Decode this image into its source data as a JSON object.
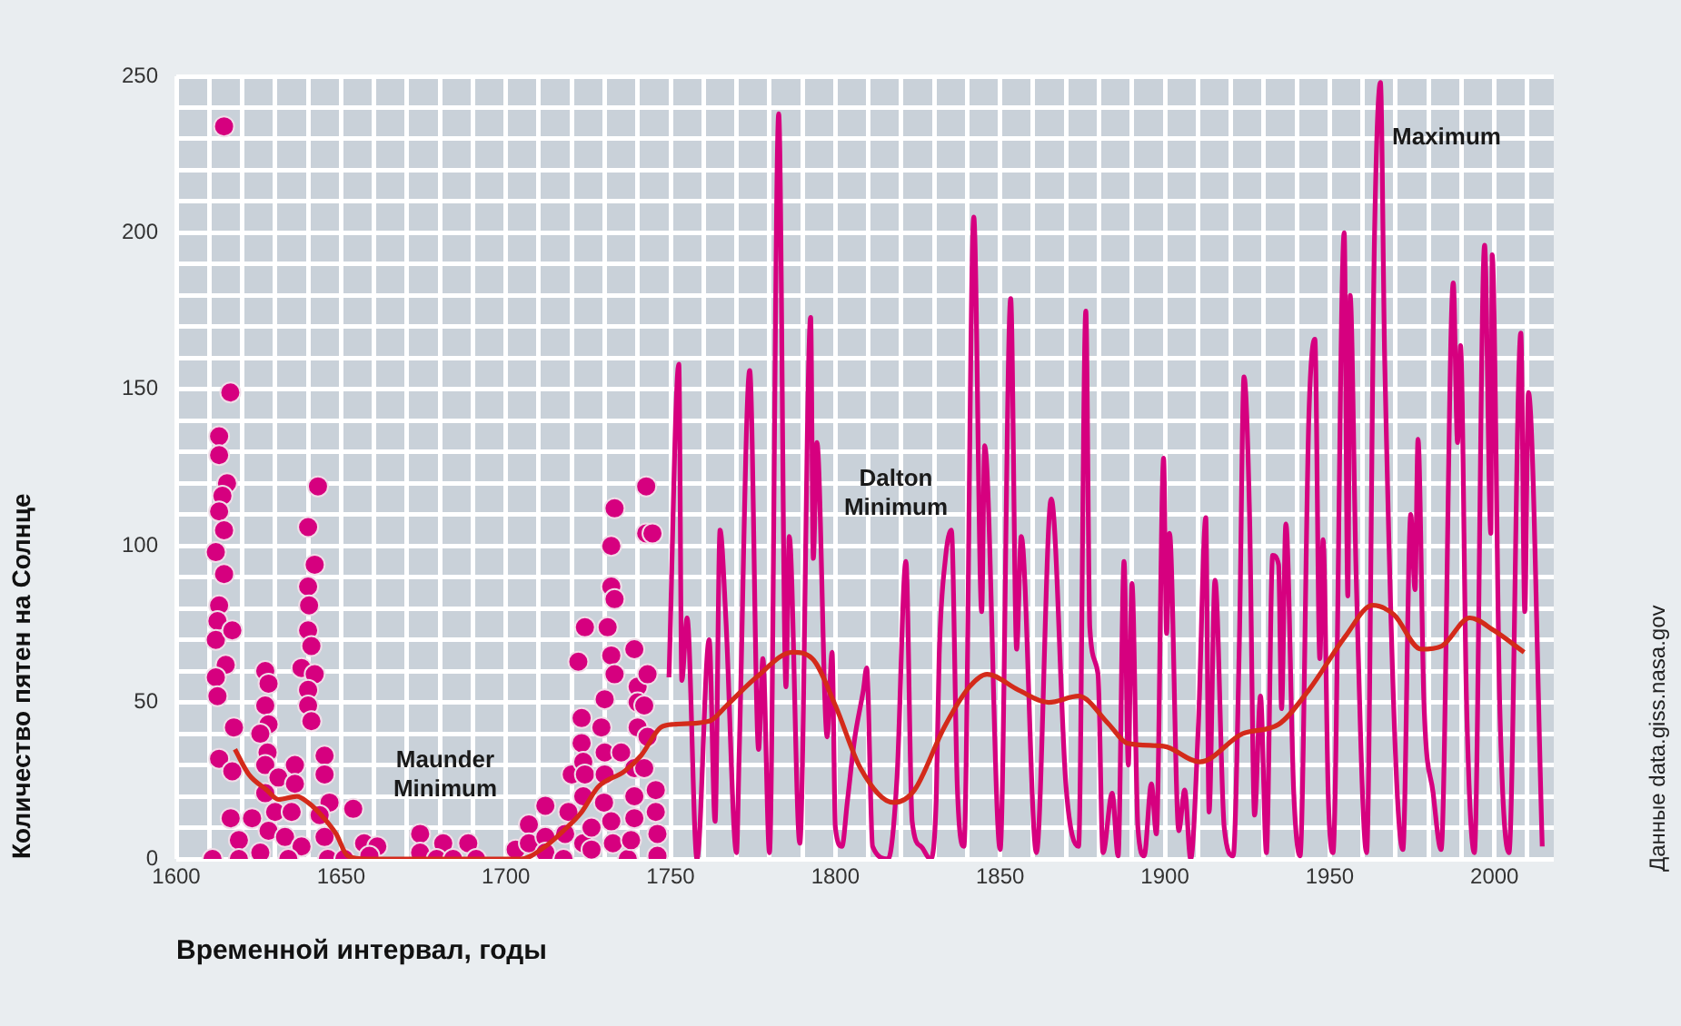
{
  "chart_data": {
    "type": "line",
    "xlabel": "Временной интервал, годы",
    "ylabel": "Количество пятен на Солнце",
    "xlim": [
      1600,
      2018
    ],
    "ylim": [
      0,
      250
    ],
    "xticks": [
      1600,
      {
        "value": 1610,
        "label": null
      },
      {
        "value": 1620,
        "label": null
      },
      {
        "value": 1630,
        "label": null
      },
      {
        "value": 1640,
        "label": null
      },
      1650,
      {
        "value": 1660,
        "label": null
      },
      {
        "value": 1670,
        "label": null
      },
      {
        "value": 1680,
        "label": null
      },
      {
        "value": 1690,
        "label": null
      },
      1700,
      {
        "value": 1710,
        "label": null
      },
      {
        "value": 1720,
        "label": null
      },
      {
        "value": 1730,
        "label": null
      },
      {
        "value": 1740,
        "label": null
      },
      1750,
      {
        "value": 1760,
        "label": null
      },
      {
        "value": 1770,
        "label": null
      },
      {
        "value": 1780,
        "label": null
      },
      {
        "value": 1790,
        "label": null
      },
      1800,
      {
        "value": 1810,
        "label": null
      },
      {
        "value": 1820,
        "label": null
      },
      {
        "value": 1830,
        "label": null
      },
      {
        "value": 1840,
        "label": null
      },
      1850,
      {
        "value": 1860,
        "label": null
      },
      {
        "value": 1870,
        "label": null
      },
      {
        "value": 1880,
        "label": null
      },
      {
        "value": 1890,
        "label": null
      },
      1900,
      {
        "value": 1910,
        "label": null
      },
      {
        "value": 1920,
        "label": null
      },
      {
        "value": 1930,
        "label": null
      },
      {
        "value": 1940,
        "label": null
      },
      1950,
      {
        "value": 1960,
        "label": null
      },
      {
        "value": 1970,
        "label": null
      },
      {
        "value": 1980,
        "label": null
      },
      {
        "value": 1990,
        "label": null
      },
      2000,
      {
        "value": 2010,
        "label": null
      }
    ],
    "yticks": [
      0,
      {
        "value": 10,
        "label": null
      },
      {
        "value": 20,
        "label": null
      },
      {
        "value": 30,
        "label": null
      },
      {
        "value": 40,
        "label": null
      },
      50,
      {
        "value": 60,
        "label": null
      },
      {
        "value": 70,
        "label": null
      },
      {
        "value": 80,
        "label": null
      },
      {
        "value": 90,
        "label": null
      },
      100,
      {
        "value": 110,
        "label": null
      },
      {
        "value": 120,
        "label": null
      },
      {
        "value": 130,
        "label": null
      },
      {
        "value": 140,
        "label": null
      },
      150,
      {
        "value": 160,
        "label": null
      },
      {
        "value": 170,
        "label": null
      },
      {
        "value": 180,
        "label": null
      },
      {
        "value": 190,
        "label": null
      },
      200,
      {
        "value": 210,
        "label": null
      },
      {
        "value": 220,
        "label": null
      },
      {
        "value": 230,
        "label": null
      },
      {
        "value": 240,
        "label": null
      },
      250
    ],
    "grid": true,
    "legend": false,
    "annotations": [
      "Maunder Minimum",
      "Dalton Minimum",
      "Maximum",
      "Данные data.giss.nasa.gov"
    ],
    "series": [
      {
        "type": "scatter",
        "marker": "circle",
        "color": "#d6007f",
        "x": [
          1614.5,
          1616.4,
          1613,
          1613,
          1615.4,
          1614,
          1613,
          1614.5,
          1612,
          1614.5,
          1613,
          1612.5,
          1612,
          1617,
          1615,
          1612,
          1612.5,
          1617.5,
          1613,
          1617,
          1616.5,
          1619,
          1611,
          1619,
          1623,
          1627,
          1628,
          1627,
          1628,
          1625.5,
          1627.7,
          1627,
          1631,
          1636,
          1636,
          1627,
          1630,
          1635,
          1628,
          1633,
          1638,
          1625.5,
          1634,
          1643,
          1640,
          1642,
          1640,
          1640.3,
          1640,
          1641,
          1638,
          1642,
          1640,
          1640,
          1641,
          1645,
          1645,
          1646.5,
          1643.5,
          1645,
          1646,
          1651,
          1653.7,
          1657,
          1661,
          1658.6,
          1674,
          1674,
          1681,
          1679,
          1684,
          1688.6,
          1691,
          1703,
          1707,
          1707,
          1712,
          1712,
          1712,
          1719,
          1718,
          1720,
          1723,
          1723,
          1723.5,
          1724,
          1723.5,
          1723.5,
          1717.5,
          1722,
          1724,
          1726,
          1726,
          1729,
          1730,
          1730,
          1729.8,
          1732,
          1732.5,
          1730,
          1730.9,
          1732,
          1733,
          1732,
          1733,
          1732,
          1733,
          1735,
          1737,
          1738,
          1739,
          1739,
          1739,
          1739,
          1740,
          1740,
          1740,
          1742,
          1743,
          1742,
          1743,
          1742.6,
          1742.6,
          1744.5,
          1745.5,
          1745.5,
          1746,
          1746
        ],
        "values": [
          234,
          149,
          135,
          129,
          120,
          116,
          111,
          105,
          98,
          91,
          81,
          76,
          70,
          73,
          62,
          58,
          52,
          42,
          32,
          28,
          13,
          6,
          0,
          0,
          13,
          60,
          56,
          49,
          43,
          40,
          34,
          30,
          26,
          30,
          24,
          21,
          15,
          15,
          9,
          7,
          4,
          2,
          0,
          119,
          106,
          94,
          87,
          81,
          73,
          68,
          61,
          59,
          54,
          49,
          44,
          33,
          27,
          18,
          14,
          7,
          0,
          0,
          16,
          5,
          4,
          1,
          8,
          2,
          5,
          0,
          0,
          5,
          0,
          3,
          11,
          5,
          17,
          7,
          2,
          15,
          8,
          27,
          45,
          37,
          31,
          27,
          20,
          5,
          0,
          63,
          74,
          10,
          3,
          42,
          34,
          27,
          18,
          12,
          5,
          51,
          74,
          87,
          83,
          100,
          112,
          65,
          59,
          34,
          0,
          6,
          13,
          20,
          29,
          67,
          55,
          50,
          42,
          49,
          39,
          29,
          59,
          119,
          104,
          104,
          22,
          15,
          8,
          1
        ]
      },
      {
        "type": "line",
        "marker": "none",
        "color": "#d6007f",
        "x": [
          1749.5,
          1752.5,
          1753.4,
          1755,
          1758,
          1761.7,
          1763.5,
          1765,
          1766.8,
          1770,
          1770.8,
          1774,
          1776.7,
          1778,
          1780,
          1782.8,
          1785,
          1786,
          1789.2,
          1792.5,
          1793.3,
          1794.4,
          1797.5,
          1799,
          1800,
          1802,
          1803.6,
          1805.8,
          1808.5,
          1809.5,
          1811.3,
          1816,
          1818.7,
          1821.4,
          1823.3,
          1826,
          1828.8,
          1830.6,
          1831.5,
          1833.4,
          1835.2,
          1837,
          1839,
          1842,
          1844.4,
          1845.3,
          1850,
          1853.2,
          1855,
          1856.4,
          1861,
          1865.5,
          1870,
          1873.8,
          1876,
          1877.2,
          1879.7,
          1881.2,
          1884,
          1885.8,
          1887.6,
          1888.9,
          1890,
          1891.8,
          1893.7,
          1895.9,
          1897.4,
          1899.6,
          1900.5,
          1901.4,
          1904.2,
          1906,
          1907.8,
          1910.2,
          1912.4,
          1913.4,
          1915.2,
          1918,
          1920.7,
          1922.6,
          1924,
          1925.7,
          1927.2,
          1929,
          1930.8,
          1932.7,
          1934.5,
          1935.4,
          1936.7,
          1939.1,
          1941,
          1943.7,
          1945.5,
          1947,
          1948,
          1949.6,
          1951,
          1954.4,
          1955.5,
          1956.2,
          1958,
          1961.2,
          1963.6,
          1965.4,
          1966.7,
          1972.2,
          1974.6,
          1975.9,
          1976.8,
          1978.6,
          1981.4,
          1983.8,
          1987.5,
          1988.8,
          1989.7,
          1991.5,
          1993.9,
          1997,
          1998.9,
          1999.3,
          2001.6,
          2004.4,
          2008,
          2009.2,
          2010.3,
          2014.5
        ],
        "values": [
          58,
          158,
          57,
          77,
          0,
          70,
          12,
          105,
          76,
          2,
          33,
          156,
          35,
          64,
          2,
          238,
          55,
          103,
          5,
          173,
          96,
          133,
          39,
          66,
          10,
          4,
          18,
          38,
          54,
          61,
          4,
          0,
          26,
          95,
          12,
          4,
          0,
          19,
          65,
          96,
          105,
          23,
          4,
          205,
          79,
          132,
          3,
          179,
          67,
          103,
          2,
          115,
          23,
          4,
          175,
          74,
          59,
          2,
          21,
          1,
          95,
          30,
          88,
          10,
          1,
          24,
          8,
          128,
          72,
          104,
          9,
          22,
          0,
          44,
          109,
          15,
          89,
          10,
          1,
          70,
          154,
          109,
          14,
          52,
          2,
          97,
          94,
          48,
          107,
          21,
          1,
          142,
          166,
          64,
          102,
          19,
          2,
          200,
          84,
          180,
          92,
          2,
          199,
          248,
          159,
          3,
          110,
          86,
          134,
          50,
          21,
          3,
          184,
          133,
          164,
          51,
          2,
          196,
          104,
          193,
          49,
          2,
          168,
          79,
          149,
          4
        ]
      },
      {
        "type": "line",
        "marker": "none",
        "color": "#d42a1a",
        "x": [
          1617.8,
          1622,
          1627.5,
          1631,
          1636.6,
          1640,
          1644,
          1648.5,
          1652,
          1658,
          1704.6,
          1712,
          1717.5,
          1723,
          1728,
          1736,
          1741,
          1747,
          1751,
          1761.7,
          1767,
          1776,
          1787,
          1793,
          1800,
          1807.6,
          1817.7,
          1824,
          1833,
          1840.7,
          1846,
          1855.5,
          1864.7,
          1873.8,
          1883,
          1888.5,
          1899.6,
          1910.6,
          1923.5,
          1934.5,
          1943.7,
          1954.7,
          1963,
          1969.5,
          1977.7,
          1984,
          1992.5,
          1999.8,
          2009
        ],
        "values": [
          35,
          27,
          22,
          19,
          20,
          18,
          14,
          8,
          1,
          0,
          0,
          4,
          9,
          15,
          23,
          28,
          33,
          42,
          43,
          44,
          49,
          58,
          66,
          64,
          49,
          29,
          18,
          22,
          42,
          55,
          59,
          54,
          50,
          52,
          43,
          37,
          36,
          31,
          40,
          43,
          54,
          71,
          81,
          78,
          67,
          68,
          77,
          73,
          66
        ]
      }
    ]
  }
}
